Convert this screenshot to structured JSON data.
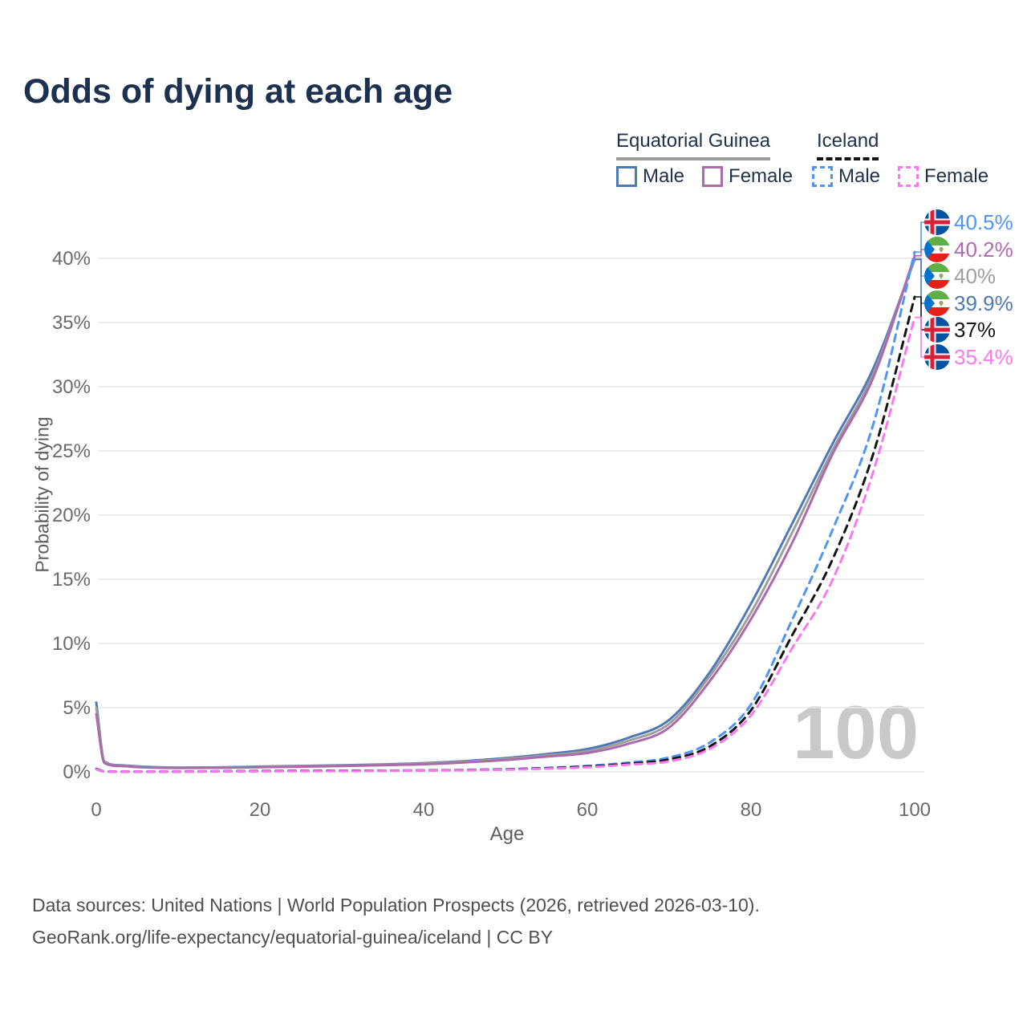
{
  "title": "Odds of dying at each age",
  "watermark": "100",
  "legend": {
    "group1": {
      "label": "Equatorial Guinea",
      "style": "solid",
      "items": [
        {
          "label": "Male",
          "color": "#4f79b6"
        },
        {
          "label": "Female",
          "color": "#ab6bab"
        }
      ]
    },
    "group2": {
      "label": "Iceland",
      "style": "dashed",
      "items": [
        {
          "label": "Male",
          "color": "#4f95f2"
        },
        {
          "label": "Female",
          "color": "#f879ef"
        }
      ]
    }
  },
  "footer": {
    "line1": "Data sources: United Nations | World Population Prospects (2026, retrieved 2026-03-10).",
    "line2": "GeoRank.org/life-expectancy/equatorial-guinea/iceland | CC BY"
  },
  "chart_data": {
    "type": "line",
    "title": "Odds of dying at each age",
    "xlabel": "Age",
    "ylabel": "Probability of dying",
    "xlim": [
      0,
      100
    ],
    "ylim": [
      0,
      43
    ],
    "grid": "horizontal",
    "legend_position": "top-right",
    "x_ticks": [
      0,
      20,
      40,
      60,
      80,
      100
    ],
    "y_ticks": [
      0,
      5,
      10,
      15,
      20,
      25,
      30,
      35,
      40
    ],
    "y_tick_suffix": "%",
    "ages": [
      0,
      1,
      3,
      5,
      10,
      15,
      20,
      25,
      30,
      35,
      40,
      45,
      50,
      55,
      60,
      65,
      70,
      75,
      80,
      85,
      90,
      95,
      100
    ],
    "series": [
      {
        "name": "Equatorial Guinea Male",
        "dash": false,
        "color": "#4f79b6",
        "values": [
          5.4,
          0.8,
          0.52,
          0.43,
          0.34,
          0.35,
          0.41,
          0.46,
          0.51,
          0.58,
          0.68,
          0.84,
          1.07,
          1.38,
          1.78,
          2.65,
          4.05,
          7.8,
          13.1,
          19.3,
          25.6,
          31.5,
          39.9
        ]
      },
      {
        "name": "Equatorial Guinea Total",
        "dash": false,
        "color": "#9e9e9e",
        "values": [
          5.0,
          0.74,
          0.48,
          0.4,
          0.32,
          0.33,
          0.38,
          0.43,
          0.48,
          0.54,
          0.64,
          0.79,
          1.0,
          1.28,
          1.62,
          2.42,
          3.75,
          7.5,
          12.4,
          18.6,
          25.1,
          31.1,
          40.0
        ]
      },
      {
        "name": "Equatorial Guinea Female",
        "dash": false,
        "color": "#ab6bab",
        "values": [
          4.5,
          0.68,
          0.45,
          0.37,
          0.3,
          0.31,
          0.36,
          0.4,
          0.45,
          0.51,
          0.59,
          0.73,
          0.92,
          1.19,
          1.47,
          2.18,
          3.45,
          7.1,
          11.9,
          17.8,
          24.8,
          30.8,
          40.2
        ]
      },
      {
        "name": "Iceland Male",
        "dash": true,
        "color": "#4f95f2",
        "values": [
          0.25,
          0.04,
          0.02,
          0.02,
          0.02,
          0.05,
          0.07,
          0.08,
          0.09,
          0.1,
          0.12,
          0.16,
          0.21,
          0.31,
          0.46,
          0.72,
          1.12,
          2.3,
          5.25,
          11.8,
          18.9,
          27.2,
          40.5
        ]
      },
      {
        "name": "Iceland Total",
        "dash": true,
        "color": "#141414",
        "values": [
          0.22,
          0.03,
          0.02,
          0.02,
          0.02,
          0.04,
          0.06,
          0.07,
          0.08,
          0.09,
          0.11,
          0.14,
          0.19,
          0.28,
          0.41,
          0.63,
          0.97,
          2.0,
          4.8,
          10.6,
          16.6,
          24.9,
          37.0
        ]
      },
      {
        "name": "Iceland Female",
        "dash": true,
        "color": "#f879ef",
        "values": [
          0.2,
          0.03,
          0.015,
          0.015,
          0.015,
          0.03,
          0.04,
          0.05,
          0.06,
          0.08,
          0.1,
          0.13,
          0.17,
          0.25,
          0.36,
          0.56,
          0.82,
          1.8,
          4.4,
          9.6,
          15.0,
          23.5,
          35.4
        ]
      }
    ],
    "end_labels": [
      {
        "text": "40.5%",
        "value": 40.5,
        "flag": "iceland",
        "color": "#4f95f2"
      },
      {
        "text": "40.2%",
        "value": 40.2,
        "flag": "equatorial-guinea",
        "color": "#b06ab0"
      },
      {
        "text": "40%",
        "value": 40.0,
        "flag": "equatorial-guinea",
        "color": "#9e9e9e"
      },
      {
        "text": "39.9%",
        "value": 39.9,
        "flag": "equatorial-guinea",
        "color": "#4f79b6"
      },
      {
        "text": "37%",
        "value": 37.0,
        "flag": "iceland",
        "color": "#141414"
      },
      {
        "text": "35.4%",
        "value": 35.4,
        "flag": "iceland",
        "color": "#f879ef"
      }
    ]
  }
}
